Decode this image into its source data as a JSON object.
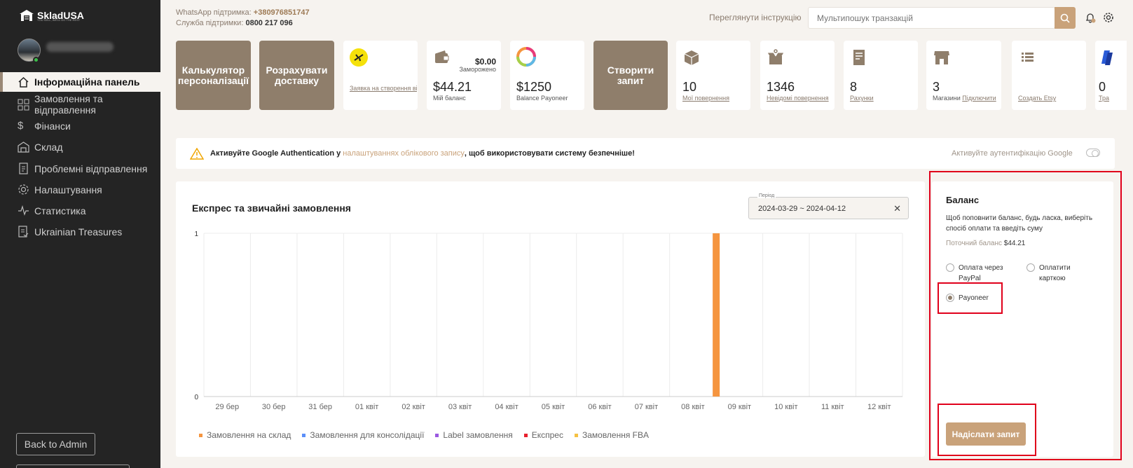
{
  "sidebar": {
    "brand": "SkladUSA",
    "tagline": "YOU SELL, WE'LL DO THE REST",
    "items": [
      {
        "label": "Інформаційна панель"
      },
      {
        "label": "Замовлення та відправлення"
      },
      {
        "label": "Фінанси"
      },
      {
        "label": "Склад"
      },
      {
        "label": "Проблемні відправлення"
      },
      {
        "label": "Налаштування"
      },
      {
        "label": "Статистика"
      },
      {
        "label": "Ukrainian Treasures"
      }
    ],
    "back_label": "Back to Admin"
  },
  "header": {
    "whatsapp_label": "WhatsApp підтримка:",
    "whatsapp_number": "+380976851747",
    "support_label": "Служба підтримки:",
    "support_number": "0800 217 096",
    "instructions": "Переглянути інструкцію",
    "search_placeholder": "Мультипошук транзакцій",
    "notification_count": "0"
  },
  "cards": {
    "calc": "Калькулятор персоналізації",
    "ship": "Розрахувати доставку",
    "virtual_card_link": "Заявка на створення віртуальної карти",
    "frozen_value": "$0.00",
    "frozen_label": "Заморожено",
    "my_balance_value": "$44.21",
    "my_balance_label": "Мій баланс",
    "payoneer_value": "$1250",
    "payoneer_label": "Balance Payoneer",
    "create_request": "Створити запит",
    "returns_value": "10",
    "returns_label": "Мої повернення",
    "unknown_returns_value": "1346",
    "unknown_returns_label": "Невідомі повернення",
    "invoices_value": "8",
    "invoices_label": "Рахунки",
    "shops_value": "3",
    "shops_label": "Магазини",
    "shops_link": "Підключити",
    "etsy_link": "Создать Etsy",
    "last_value": "0",
    "last_label": "Тра"
  },
  "alert": {
    "text_before": "Активуйте Google Authentication у ",
    "link": "налаштуваннях облікового запису",
    "text_after": ", щоб використовувати систему безпечніше!",
    "toggle_label": "Активуйте аутентифікацію Google"
  },
  "chart_panel": {
    "title": "Експрес та звичайні замовлення",
    "period_label": "Період",
    "period_value": "2024-03-29 ~ 2024-04-12",
    "clear": "✕"
  },
  "chart_data": {
    "type": "bar",
    "title": "Експрес та звичайні замовлення",
    "categories": [
      "29 бер",
      "30 бер",
      "31 бер",
      "01 квіт",
      "02 квіт",
      "03 квіт",
      "04 квіт",
      "05 квіт",
      "06 квіт",
      "07 квіт",
      "08 квіт",
      "09 квіт",
      "10 квіт",
      "11 квіт",
      "12 квіт"
    ],
    "ylim": [
      0,
      1
    ],
    "yticks": [
      "0",
      "1"
    ],
    "series": [
      {
        "name": "Замовлення на склад",
        "color": "#f5953f",
        "values": [
          0,
          0,
          0,
          0,
          0,
          0,
          0,
          0,
          0,
          0,
          0,
          1,
          0,
          0,
          0
        ]
      },
      {
        "name": "Замовлення для консолідації",
        "color": "#5b8ff9",
        "values": [
          0,
          0,
          0,
          0,
          0,
          0,
          0,
          0,
          0,
          0,
          0,
          0,
          0,
          0,
          0
        ]
      },
      {
        "name": "Label замовлення",
        "color": "#9b59e0",
        "values": [
          0,
          0,
          0,
          0,
          0,
          0,
          0,
          0,
          0,
          0,
          0,
          0,
          0,
          0,
          0
        ]
      },
      {
        "name": "Експрес",
        "color": "#e8202e",
        "values": [
          0,
          0,
          0,
          0,
          0,
          0,
          0,
          0,
          0,
          0,
          0,
          0,
          0,
          0,
          0
        ]
      },
      {
        "name": "Замовлення FBA",
        "color": "#f5c142",
        "values": [
          0,
          0,
          0,
          0,
          0,
          0,
          0,
          0,
          0,
          0,
          0,
          0,
          0,
          0,
          0
        ]
      }
    ],
    "grid": true,
    "legend": "bottom-left"
  },
  "balance": {
    "title": "Баланс",
    "description": "Щоб поповнити баланс, будь ласка, виберіть спосіб оплати та введіть суму",
    "current_label": "Поточний баланс",
    "current_value": "$44.21",
    "option_paypal": "Оплата через PayPal",
    "option_card": "Оплатити карткою",
    "option_payoneer": "Payoneer",
    "selected": "Payoneer",
    "submit": "Надіслати запит"
  },
  "colors": {
    "accent": "#c9a27a",
    "dark_card": "#8f7e6b",
    "sidebar": "#242424",
    "highlight": "#e0001b"
  }
}
